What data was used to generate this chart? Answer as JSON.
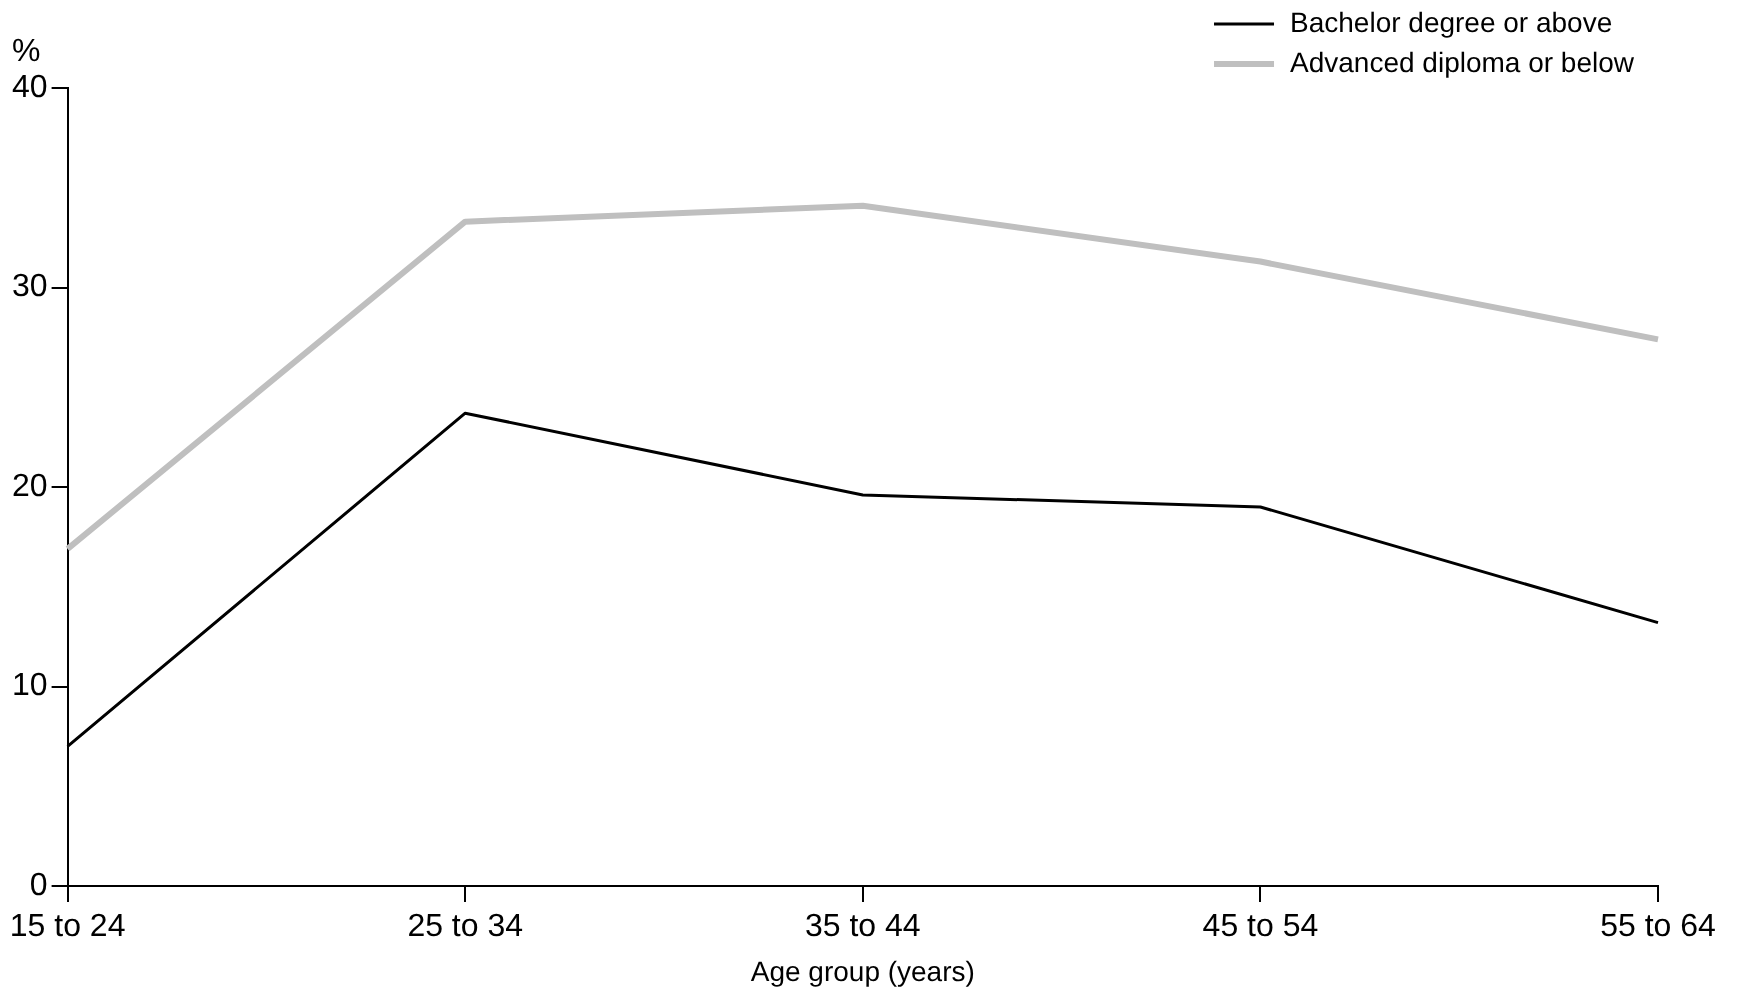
{
  "chart_data": {
    "type": "line",
    "ylabel": "%",
    "xlabel": "Age group (years)",
    "categories": [
      "15 to 24",
      "25 to 34",
      "35 to 44",
      "45 to 54",
      "55 to 64"
    ],
    "series": [
      {
        "name": "Bachelor degree or above",
        "color": "#000000",
        "values": [
          7.0,
          23.7,
          19.6,
          19.0,
          13.2
        ]
      },
      {
        "name": "Advanced diploma or below",
        "color": "#bfbfbf",
        "values": [
          16.9,
          33.3,
          34.1,
          31.3,
          27.4
        ]
      }
    ],
    "ylim": [
      0,
      40
    ],
    "yticks": [
      0,
      10,
      20,
      30,
      40
    ],
    "grid": false,
    "legend": "top right",
    "marker": "none",
    "line_style": "solid"
  }
}
